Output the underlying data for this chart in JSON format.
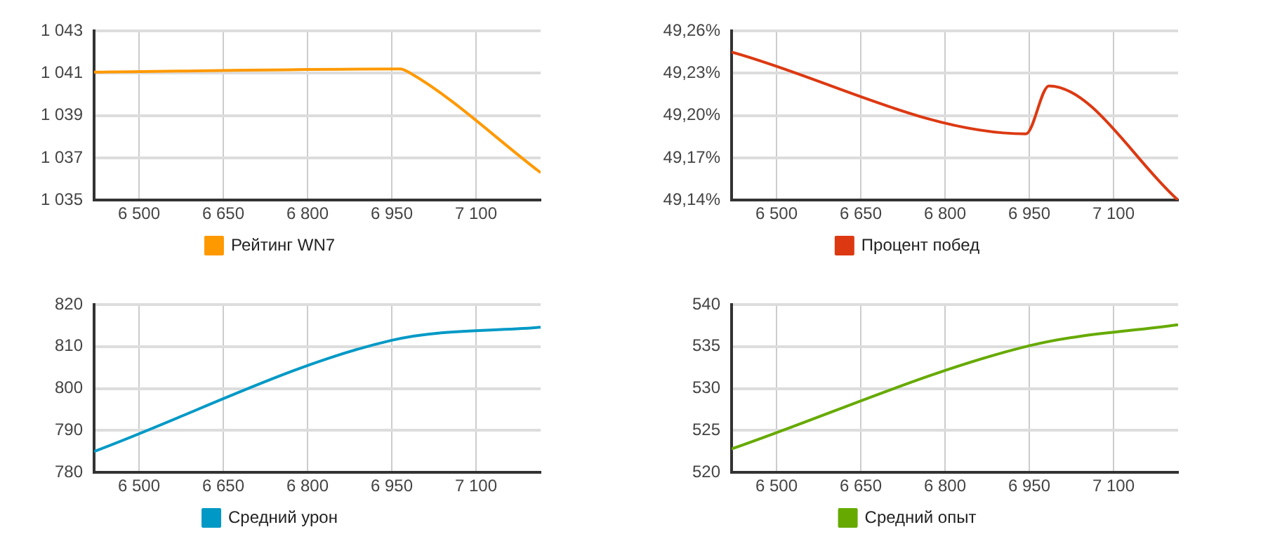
{
  "chart_data": [
    {
      "type": "line",
      "x": [
        6420,
        6965,
        6980,
        7215
      ],
      "series": [
        {
          "name": "Рейтинг WN7",
          "color": "#ff9900",
          "values": [
            1041.05,
            1041.2,
            1041.05,
            1036.3
          ]
        }
      ],
      "xlim": [
        6420,
        7215
      ],
      "xticks": [
        {
          "value": 6500,
          "label": "6 500"
        },
        {
          "value": 6650,
          "label": "6 650"
        },
        {
          "value": 6800,
          "label": "6 800"
        },
        {
          "value": 6950,
          "label": "6 950"
        },
        {
          "value": 7100,
          "label": "7 100"
        }
      ],
      "ylim": [
        1035,
        1043
      ],
      "yticks": [
        {
          "value": 1035,
          "label": "1 035"
        },
        {
          "value": 1037,
          "label": "1 037"
        },
        {
          "value": 1039,
          "label": "1 039"
        },
        {
          "value": 1041,
          "label": "1 041"
        },
        {
          "value": 1043,
          "label": "1 043"
        }
      ],
      "grid": true,
      "legend": "bottom"
    },
    {
      "type": "line",
      "x": [
        6420,
        6944,
        6985,
        7215
      ],
      "series": [
        {
          "name": "Процент побед",
          "color": "#dc3912",
          "values": [
            49.245,
            49.187,
            49.221,
            49.14
          ]
        }
      ],
      "xlim": [
        6420,
        7215
      ],
      "xticks": [
        {
          "value": 6500,
          "label": "6 500"
        },
        {
          "value": 6650,
          "label": "6 650"
        },
        {
          "value": 6800,
          "label": "6 800"
        },
        {
          "value": 6950,
          "label": "6 950"
        },
        {
          "value": 7100,
          "label": "7 100"
        }
      ],
      "ylim": [
        49.14,
        49.26
      ],
      "yticks": [
        {
          "value": 49.14,
          "label": "49,14%"
        },
        {
          "value": 49.17,
          "label": "49,17%"
        },
        {
          "value": 49.2,
          "label": "49,20%"
        },
        {
          "value": 49.23,
          "label": "49,23%"
        },
        {
          "value": 49.26,
          "label": "49,26%"
        }
      ],
      "grid": true,
      "legend": "bottom"
    },
    {
      "type": "line",
      "x": [
        6420,
        6950,
        7215
      ],
      "series": [
        {
          "name": "Средний урон",
          "color": "#0099c6",
          "values": [
            785,
            811.5,
            814.6
          ]
        }
      ],
      "xlim": [
        6420,
        7215
      ],
      "xticks": [
        {
          "value": 6500,
          "label": "6 500"
        },
        {
          "value": 6650,
          "label": "6 650"
        },
        {
          "value": 6800,
          "label": "6 800"
        },
        {
          "value": 6950,
          "label": "6 950"
        },
        {
          "value": 7100,
          "label": "7 100"
        }
      ],
      "ylim": [
        780,
        820
      ],
      "yticks": [
        780,
        790,
        800,
        810,
        820
      ],
      "grid": true,
      "legend": "bottom"
    },
    {
      "type": "line",
      "x": [
        6420,
        6950,
        7215
      ],
      "series": [
        {
          "name": "Средний опыт",
          "color": "#66aa00",
          "values": [
            522.8,
            535.1,
            537.6
          ]
        }
      ],
      "xlim": [
        6420,
        7215
      ],
      "xticks": [
        {
          "value": 6500,
          "label": "6 500"
        },
        {
          "value": 6650,
          "label": "6 650"
        },
        {
          "value": 6800,
          "label": "6 800"
        },
        {
          "value": 6950,
          "label": "6 950"
        },
        {
          "value": 7100,
          "label": "7 100"
        }
      ],
      "ylim": [
        520,
        540
      ],
      "yticks": [
        520,
        525,
        530,
        535,
        540
      ],
      "grid": true,
      "legend": "bottom"
    }
  ]
}
